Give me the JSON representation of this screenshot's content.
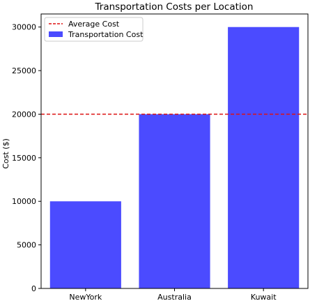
{
  "chart_data": {
    "type": "bar",
    "title": "Transportation Costs per Location",
    "xlabel": "",
    "ylabel": "Cost ($)",
    "categories": [
      "NewYork",
      "Australia",
      "Kuwait"
    ],
    "series": [
      {
        "name": "Transportation Cost",
        "values": [
          10000,
          20000,
          30000
        ],
        "color": "#4b4bff"
      }
    ],
    "reference_line": {
      "name": "Average Cost",
      "value": 20000,
      "color": "#dd1111",
      "style": "dashed"
    },
    "ylim": [
      0,
      31500
    ],
    "yticks": [
      0,
      5000,
      10000,
      15000,
      20000,
      25000,
      30000
    ],
    "grid": false,
    "legend_position": "upper-left"
  }
}
